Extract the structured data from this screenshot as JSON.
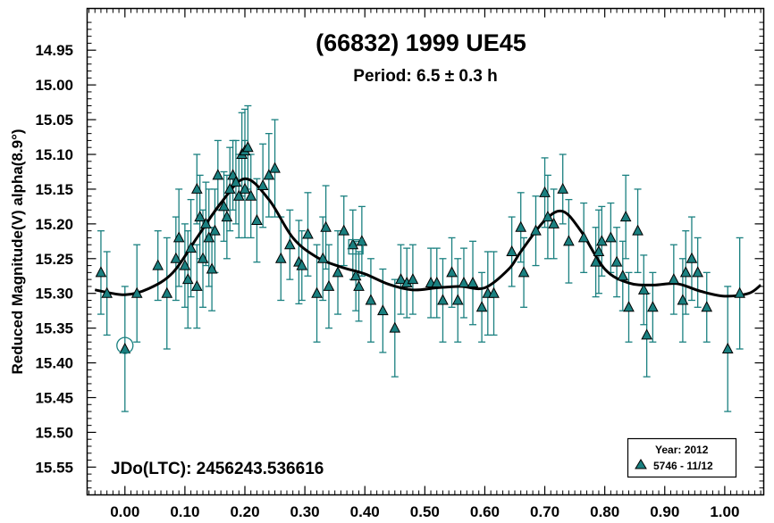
{
  "chart_data": {
    "type": "scatter",
    "title": "(66832) 1999 UE45",
    "subtitle": "Period: 6.5 ± 0.3 h",
    "ylabel": "Reduced Magnitude(V) alpha(8.9°)",
    "xlabel": "",
    "annotation": "JDo(LTC): 2456243.536616",
    "xlim": [
      -0.063,
      1.065
    ],
    "ylim": [
      14.89,
      15.59
    ],
    "y_inverted": true,
    "grid": false,
    "x_ticks": [
      "0.00",
      "0.10",
      "0.20",
      "0.30",
      "0.40",
      "0.50",
      "0.60",
      "0.70",
      "0.80",
      "0.90",
      "1.00"
    ],
    "y_ticks": [
      "14.95",
      "15.00",
      "15.05",
      "15.10",
      "15.15",
      "15.20",
      "15.25",
      "15.30",
      "15.35",
      "15.40",
      "15.45",
      "15.50",
      "15.55"
    ],
    "legend": {
      "placement": "bottom-right",
      "header": "Year: 2012",
      "entries": [
        "5746 - 11/12"
      ]
    },
    "marker_color": "#1a8080",
    "errorbar_color": "#1a8080",
    "curve_color": "#000000",
    "series": [
      {
        "name": "5746 - 11/12",
        "points": [
          [
            -0.04,
            15.27,
            0.06
          ],
          [
            -0.03,
            15.3,
            0.06
          ],
          [
            0.0,
            15.38,
            0.09
          ],
          [
            0.02,
            15.3,
            0.07
          ],
          [
            0.055,
            15.26,
            0.05
          ],
          [
            0.07,
            15.3,
            0.08
          ],
          [
            0.085,
            15.25,
            0.06
          ],
          [
            0.09,
            15.22,
            0.07
          ],
          [
            0.1,
            15.26,
            0.06
          ],
          [
            0.105,
            15.28,
            0.07
          ],
          [
            0.11,
            15.235,
            0.07
          ],
          [
            0.12,
            15.29,
            0.06
          ],
          [
            0.12,
            15.15,
            0.05
          ],
          [
            0.125,
            15.19,
            0.06
          ],
          [
            0.13,
            15.25,
            0.07
          ],
          [
            0.135,
            15.2,
            0.06
          ],
          [
            0.14,
            15.22,
            0.07
          ],
          [
            0.145,
            15.265,
            0.06
          ],
          [
            0.15,
            15.21,
            0.06
          ],
          [
            0.155,
            15.13,
            0.05
          ],
          [
            0.165,
            15.175,
            0.05
          ],
          [
            0.17,
            15.19,
            0.06
          ],
          [
            0.175,
            15.15,
            0.06
          ],
          [
            0.18,
            15.13,
            0.05
          ],
          [
            0.185,
            15.14,
            0.06
          ],
          [
            0.19,
            15.16,
            0.06
          ],
          [
            0.195,
            15.1,
            0.06
          ],
          [
            0.2,
            15.15,
            0.07
          ],
          [
            0.2,
            15.095,
            0.06
          ],
          [
            0.205,
            15.09,
            0.06
          ],
          [
            0.21,
            15.16,
            0.06
          ],
          [
            0.22,
            15.195,
            0.06
          ],
          [
            0.23,
            15.145,
            0.06
          ],
          [
            0.24,
            15.13,
            0.06
          ],
          [
            0.25,
            15.12,
            0.07
          ],
          [
            0.26,
            15.25,
            0.06
          ],
          [
            0.275,
            15.23,
            0.05
          ],
          [
            0.29,
            15.255,
            0.06
          ],
          [
            0.295,
            15.26,
            0.05
          ],
          [
            0.305,
            15.215,
            0.06
          ],
          [
            0.32,
            15.3,
            0.07
          ],
          [
            0.33,
            15.25,
            0.06
          ],
          [
            0.335,
            15.205,
            0.06
          ],
          [
            0.34,
            15.29,
            0.06
          ],
          [
            0.355,
            15.27,
            0.06
          ],
          [
            0.365,
            15.21,
            0.05
          ],
          [
            0.38,
            15.23,
            0.05
          ],
          [
            0.385,
            15.275,
            0.05
          ],
          [
            0.39,
            15.29,
            0.05
          ],
          [
            0.395,
            15.225,
            0.05
          ],
          [
            0.41,
            15.31,
            0.06
          ],
          [
            0.43,
            15.325,
            0.06
          ],
          [
            0.45,
            15.35,
            0.07
          ],
          [
            0.46,
            15.28,
            0.05
          ],
          [
            0.47,
            15.285,
            0.05
          ],
          [
            0.48,
            15.28,
            0.05
          ],
          [
            0.51,
            15.285,
            0.05
          ],
          [
            0.52,
            15.285,
            0.05
          ],
          [
            0.53,
            15.31,
            0.06
          ],
          [
            0.545,
            15.27,
            0.05
          ],
          [
            0.555,
            15.31,
            0.06
          ],
          [
            0.565,
            15.285,
            0.05
          ],
          [
            0.58,
            15.285,
            0.06
          ],
          [
            0.595,
            15.32,
            0.05
          ],
          [
            0.605,
            15.3,
            0.06
          ],
          [
            0.615,
            15.3,
            0.06
          ],
          [
            0.645,
            15.24,
            0.05
          ],
          [
            0.66,
            15.205,
            0.05
          ],
          [
            0.665,
            15.27,
            0.05
          ],
          [
            0.685,
            15.21,
            0.05
          ],
          [
            0.7,
            15.155,
            0.05
          ],
          [
            0.705,
            15.19,
            0.06
          ],
          [
            0.715,
            15.2,
            0.05
          ],
          [
            0.73,
            15.15,
            0.05
          ],
          [
            0.74,
            15.225,
            0.06
          ],
          [
            0.765,
            15.22,
            0.05
          ],
          [
            0.785,
            15.255,
            0.05
          ],
          [
            0.79,
            15.24,
            0.06
          ],
          [
            0.795,
            15.225,
            0.05
          ],
          [
            0.81,
            15.22,
            0.05
          ],
          [
            0.82,
            15.255,
            0.05
          ],
          [
            0.83,
            15.275,
            0.05
          ],
          [
            0.835,
            15.19,
            0.06
          ],
          [
            0.84,
            15.32,
            0.05
          ],
          [
            0.855,
            15.21,
            0.06
          ],
          [
            0.865,
            15.295,
            0.05
          ],
          [
            0.87,
            15.36,
            0.06
          ],
          [
            0.88,
            15.32,
            0.05
          ],
          [
            0.915,
            15.28,
            0.05
          ],
          [
            0.93,
            15.31,
            0.06
          ],
          [
            0.935,
            15.27,
            0.06
          ],
          [
            0.945,
            15.25,
            0.06
          ],
          [
            0.955,
            15.27,
            0.05
          ],
          [
            0.97,
            15.32,
            0.05
          ],
          [
            1.005,
            15.38,
            0.09
          ],
          [
            1.025,
            15.3,
            0.08
          ]
        ]
      }
    ],
    "fit_curve": {
      "x": [
        -0.05,
        0.0,
        0.04,
        0.08,
        0.12,
        0.16,
        0.2,
        0.24,
        0.28,
        0.32,
        0.36,
        0.4,
        0.44,
        0.48,
        0.52,
        0.56,
        0.6,
        0.64,
        0.66,
        0.7,
        0.73,
        0.76,
        0.8,
        0.84,
        0.88,
        0.92,
        0.96,
        1.0,
        1.04,
        1.06
      ],
      "y": [
        15.295,
        15.302,
        15.293,
        15.27,
        15.22,
        15.17,
        15.135,
        15.165,
        15.22,
        15.248,
        15.262,
        15.272,
        15.287,
        15.295,
        15.292,
        15.29,
        15.292,
        15.265,
        15.24,
        15.195,
        15.182,
        15.21,
        15.265,
        15.285,
        15.288,
        15.286,
        15.297,
        15.304,
        15.3,
        15.288
      ]
    },
    "highlighted_points": [
      [
        0.0,
        15.375
      ],
      [
        0.385,
        15.233
      ]
    ]
  }
}
